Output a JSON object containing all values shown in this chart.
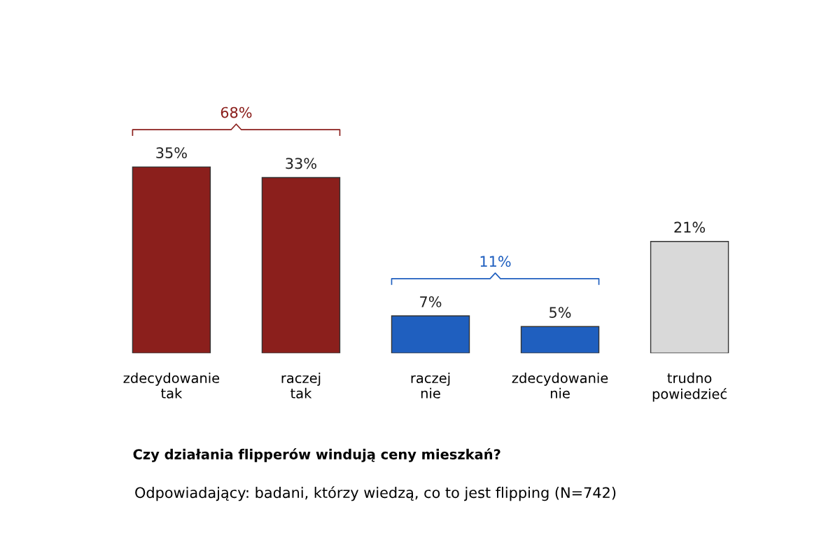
{
  "chart_data": {
    "type": "bar",
    "title": "Czy działania flipperów windują ceny mieszkań?",
    "subtitle": "Odpowiadający: badani, którzy wiedzą, co to jest flipping (N=742)",
    "categories": [
      "zdecydowanie\ntak",
      "raczej\ntak",
      "raczej\nnie",
      "zdecydowanie\nnie",
      "trudno\npowiedzieć"
    ],
    "values": [
      35,
      33,
      7,
      5,
      21
    ],
    "colors": [
      "#8b1f1c",
      "#8b1f1c",
      "#1f5fbf",
      "#1f5fbf",
      "#d9d9d9"
    ],
    "value_labels": [
      "35%",
      "33%",
      "7%",
      "5%",
      "21%"
    ],
    "annotations": [
      "68%",
      "11%"
    ]
  }
}
